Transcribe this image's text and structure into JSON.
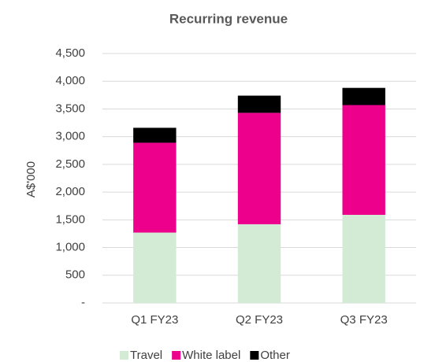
{
  "chart_data": {
    "type": "stacked_bar",
    "title": "Recurring revenue",
    "y_label": "A$'000",
    "categories": [
      "Q1 FY23",
      "Q2 FY23",
      "Q3 FY23"
    ],
    "series": [
      {
        "name": "Travel",
        "color": "#d3ebd5",
        "values": [
          1270,
          1420,
          1590
        ]
      },
      {
        "name": "White label",
        "color": "#ec008c",
        "values": [
          1620,
          2010,
          1980
        ]
      },
      {
        "name": "Other",
        "color": "#000000",
        "values": [
          270,
          310,
          310
        ]
      }
    ],
    "ylim": [
      0,
      4500
    ],
    "yticks": [
      {
        "value": 0,
        "label": "-"
      },
      500,
      {
        "value": 1000,
        "label": "1,000"
      },
      {
        "value": 1500,
        "label": "1,500"
      },
      {
        "value": 2000,
        "label": "2,000"
      },
      {
        "value": 2500,
        "label": "2,500"
      },
      {
        "value": 3000,
        "label": "3,000"
      },
      {
        "value": 3500,
        "label": "3,500"
      },
      {
        "value": 4000,
        "label": "4,000"
      },
      {
        "value": 4500,
        "label": "4,500"
      }
    ],
    "grid": true,
    "legend": "bottom"
  }
}
